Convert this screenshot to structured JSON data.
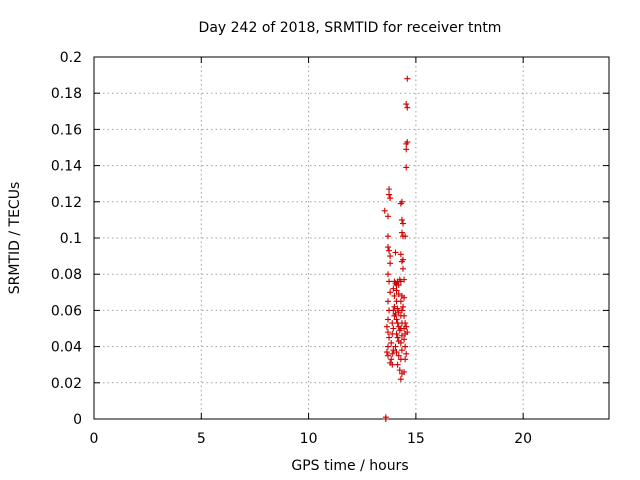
{
  "chart_data": {
    "type": "scatter",
    "title": "Day 242 of 2018, SRMTID for receiver tntm",
    "xlabel": "GPS time / hours",
    "ylabel": "SRMTID / TECUs",
    "xlim": [
      0,
      24
    ],
    "ylim": [
      0,
      0.2
    ],
    "x_ticks": [
      0,
      5,
      10,
      15,
      20
    ],
    "x_tick_labels": [
      "0",
      "5",
      "10",
      "15",
      "20"
    ],
    "y_ticks": [
      0,
      0.02,
      0.04,
      0.06,
      0.08,
      0.1,
      0.12,
      0.14,
      0.16,
      0.18,
      0.2
    ],
    "y_tick_labels": [
      "0",
      "0.02",
      "0.04",
      "0.06",
      "0.08",
      "0.1",
      "0.12",
      "0.14",
      "0.16",
      "0.18",
      "0.2"
    ],
    "grid": true,
    "marker": "+",
    "color": "#d00000",
    "series": [
      {
        "name": "SRMTID",
        "points": [
          [
            13.6,
            0.0
          ],
          [
            13.6,
            0.001
          ],
          [
            13.55,
            0.115
          ],
          [
            13.7,
            0.112
          ],
          [
            13.75,
            0.127
          ],
          [
            13.75,
            0.124
          ],
          [
            13.8,
            0.122
          ],
          [
            13.7,
            0.101
          ],
          [
            13.7,
            0.095
          ],
          [
            13.75,
            0.093
          ],
          [
            13.8,
            0.09
          ],
          [
            13.8,
            0.086
          ],
          [
            13.7,
            0.08
          ],
          [
            13.75,
            0.076
          ],
          [
            13.8,
            0.07
          ],
          [
            13.7,
            0.065
          ],
          [
            13.75,
            0.06
          ],
          [
            13.7,
            0.055
          ],
          [
            13.65,
            0.051
          ],
          [
            13.7,
            0.048
          ],
          [
            13.75,
            0.045
          ],
          [
            13.7,
            0.04
          ],
          [
            13.65,
            0.037
          ],
          [
            13.7,
            0.035
          ],
          [
            13.8,
            0.031
          ],
          [
            13.9,
            0.03
          ],
          [
            13.85,
            0.033
          ],
          [
            13.9,
            0.036
          ],
          [
            13.95,
            0.038
          ],
          [
            13.85,
            0.042
          ],
          [
            13.9,
            0.047
          ],
          [
            13.95,
            0.05
          ],
          [
            13.9,
            0.053
          ],
          [
            14.0,
            0.057
          ],
          [
            13.95,
            0.06
          ],
          [
            14.0,
            0.062
          ],
          [
            14.05,
            0.058
          ],
          [
            13.95,
            0.072
          ],
          [
            14.0,
            0.076
          ],
          [
            14.05,
            0.075
          ],
          [
            14.1,
            0.074
          ],
          [
            14.0,
            0.068
          ],
          [
            14.05,
            0.092
          ],
          [
            14.1,
            0.071
          ],
          [
            14.15,
            0.076
          ],
          [
            14.2,
            0.074
          ],
          [
            14.2,
            0.069
          ],
          [
            14.1,
            0.065
          ],
          [
            14.15,
            0.061
          ],
          [
            14.2,
            0.059
          ],
          [
            14.1,
            0.055
          ],
          [
            14.15,
            0.053
          ],
          [
            14.2,
            0.051
          ],
          [
            14.25,
            0.049
          ],
          [
            14.1,
            0.047
          ],
          [
            14.15,
            0.045
          ],
          [
            14.2,
            0.043
          ],
          [
            14.05,
            0.04
          ],
          [
            14.1,
            0.037
          ],
          [
            14.2,
            0.035
          ],
          [
            14.15,
            0.03
          ],
          [
            14.25,
            0.027
          ],
          [
            14.3,
            0.022
          ],
          [
            14.35,
            0.025
          ],
          [
            14.3,
            0.033
          ],
          [
            14.35,
            0.038
          ],
          [
            14.3,
            0.042
          ],
          [
            14.35,
            0.046
          ],
          [
            14.3,
            0.05
          ],
          [
            14.35,
            0.053
          ],
          [
            14.3,
            0.057
          ],
          [
            14.35,
            0.06
          ],
          [
            14.3,
            0.065
          ],
          [
            14.35,
            0.068
          ],
          [
            14.3,
            0.076
          ],
          [
            14.25,
            0.077
          ],
          [
            14.3,
            0.091
          ],
          [
            14.35,
            0.087
          ],
          [
            14.35,
            0.11
          ],
          [
            14.4,
            0.108
          ],
          [
            14.35,
            0.103
          ],
          [
            14.4,
            0.101
          ],
          [
            14.35,
            0.12
          ],
          [
            14.3,
            0.119
          ],
          [
            14.4,
            0.088
          ],
          [
            14.4,
            0.083
          ],
          [
            14.45,
            0.077
          ],
          [
            14.45,
            0.067
          ],
          [
            14.4,
            0.062
          ],
          [
            14.45,
            0.057
          ],
          [
            14.5,
            0.053
          ],
          [
            14.45,
            0.05
          ],
          [
            14.5,
            0.047
          ],
          [
            14.45,
            0.044
          ],
          [
            14.5,
            0.04
          ],
          [
            14.55,
            0.036
          ],
          [
            14.5,
            0.033
          ],
          [
            14.45,
            0.026
          ],
          [
            14.5,
            0.101
          ],
          [
            14.55,
            0.139
          ],
          [
            14.55,
            0.149
          ],
          [
            14.6,
            0.153
          ],
          [
            14.55,
            0.152
          ],
          [
            14.6,
            0.172
          ],
          [
            14.55,
            0.174
          ],
          [
            14.6,
            0.188
          ],
          [
            14.55,
            0.051
          ],
          [
            14.6,
            0.048
          ]
        ]
      }
    ]
  }
}
